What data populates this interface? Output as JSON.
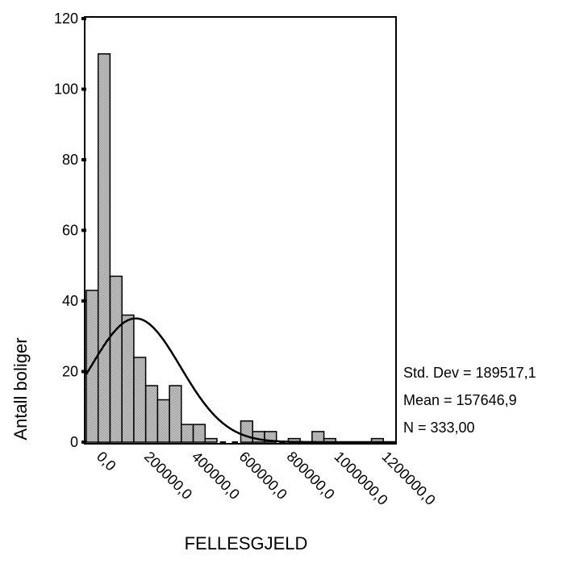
{
  "chart_data": {
    "type": "bar",
    "subtype": "histogram",
    "xlabel": "FELLESGJELD",
    "ylabel": "Antall boliger",
    "xlim": [
      -50000,
      1250000
    ],
    "ylim": [
      0,
      120
    ],
    "y_ticks": [
      0,
      20,
      40,
      60,
      80,
      100,
      120
    ],
    "x_ticks": [
      0,
      200000,
      400000,
      600000,
      800000,
      1000000,
      1200000
    ],
    "x_tick_labels": [
      "0,0",
      "200000,0",
      "400000,0",
      "600000,0",
      "800000,0",
      "1000000,0",
      "1200000,0"
    ],
    "bin_width": 50000,
    "bin_centers": [
      -25000,
      25000,
      75000,
      125000,
      175000,
      225000,
      275000,
      325000,
      375000,
      425000,
      475000,
      525000,
      575000,
      625000,
      675000,
      725000,
      775000,
      825000,
      875000,
      925000,
      975000,
      1025000,
      1075000,
      1125000,
      1175000
    ],
    "values": [
      43,
      110,
      47,
      36,
      24,
      16,
      12,
      16,
      5,
      5,
      1,
      0,
      0,
      6,
      3,
      3,
      0,
      1,
      0,
      3,
      1,
      0,
      0,
      0,
      1
    ],
    "normal_curve": {
      "mean": 157646.9,
      "std": 189517.1,
      "n": 333
    },
    "grid": false,
    "bar_fill": "#c0c0c0",
    "line_color": "#000000"
  },
  "stats": {
    "std_dev": "Std. Dev = 189517,1",
    "mean": "Mean = 157646,9",
    "n": "N = 333,00"
  }
}
